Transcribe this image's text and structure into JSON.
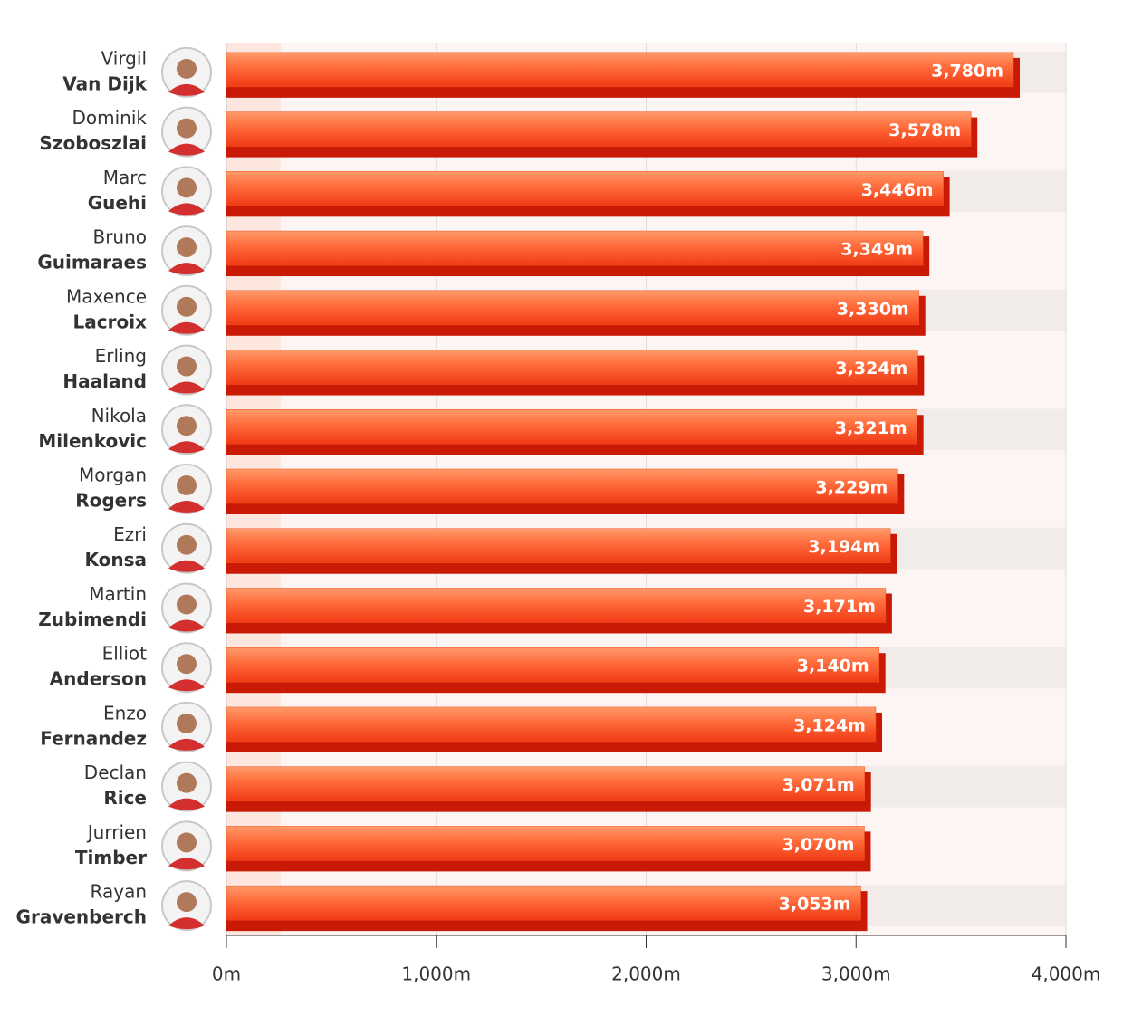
{
  "chart_data": {
    "type": "hbar",
    "categories": [
      {
        "first": "Virgil",
        "last": "Van Dijk"
      },
      {
        "first": "Dominik",
        "last": "Szoboszlai"
      },
      {
        "first": "Marc",
        "last": "Guehi"
      },
      {
        "first": "Bruno",
        "last": "Guimaraes"
      },
      {
        "first": "Maxence",
        "last": "Lacroix"
      },
      {
        "first": "Erling",
        "last": "Haaland"
      },
      {
        "first": "Nikola",
        "last": "Milenkovic"
      },
      {
        "first": "Morgan",
        "last": "Rogers"
      },
      {
        "first": "Ezri",
        "last": "Konsa"
      },
      {
        "first": "Martin",
        "last": "Zubimendi"
      },
      {
        "first": "Elliot",
        "last": "Anderson"
      },
      {
        "first": "Enzo",
        "last": "Fernandez"
      },
      {
        "first": "Declan",
        "last": "Rice"
      },
      {
        "first": "Jurrien",
        "last": "Timber"
      },
      {
        "first": "Rayan",
        "last": "Gravenberch"
      }
    ],
    "values": [
      3780,
      3578,
      3446,
      3349,
      3330,
      3324,
      3321,
      3229,
      3194,
      3171,
      3140,
      3124,
      3071,
      3070,
      3053
    ],
    "value_labels": [
      "3,780m",
      "3,578m",
      "3,446m",
      "3,349m",
      "3,330m",
      "3,324m",
      "3,321m",
      "3,229m",
      "3,194m",
      "3,171m",
      "3,140m",
      "3,124m",
      "3,071m",
      "3,070m",
      "3,053m"
    ],
    "color": "#f4511e",
    "xlim": [
      0,
      4000
    ],
    "xticks": [
      {
        "value": 0,
        "label": "0m"
      },
      {
        "value": 1000,
        "label": "1,000m"
      },
      {
        "value": 2000,
        "label": "2,000m"
      },
      {
        "value": 3000,
        "label": "3,000m"
      },
      {
        "value": 4000,
        "label": "4,000m"
      }
    ],
    "grid": true
  }
}
